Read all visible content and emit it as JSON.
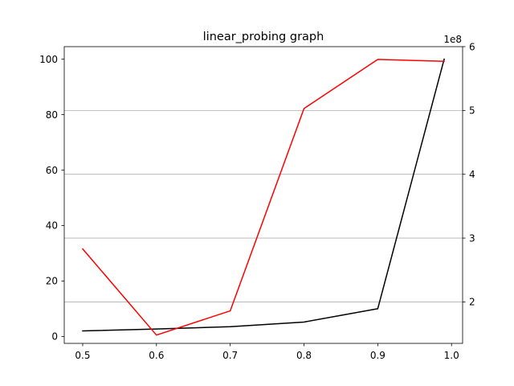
{
  "chart_data": {
    "type": "line",
    "title": "linear_probing graph",
    "xlabel": "",
    "ylabel_left": "",
    "ylabel_right": "",
    "x": [
      0.5,
      0.6,
      0.7,
      0.8,
      0.9,
      0.99
    ],
    "xlim": [
      0.475,
      1.015
    ],
    "x_ticks": [
      0.5,
      0.6,
      0.7,
      0.8,
      0.9,
      1.0
    ],
    "x_tick_labels": [
      "0.5",
      "0.6",
      "0.7",
      "0.8",
      "0.9",
      "1.0"
    ],
    "left_axis": {
      "ylim": [
        -2.5,
        104.5
      ],
      "ticks": [
        0,
        20,
        40,
        60,
        80,
        100
      ],
      "tick_labels": [
        "0",
        "20",
        "40",
        "60",
        "80",
        "100"
      ]
    },
    "right_axis": {
      "ylim": [
        1.35,
        6.0
      ],
      "ticks": [
        2,
        3,
        4,
        5,
        6
      ],
      "tick_labels": [
        "2",
        "3",
        "4",
        "5",
        "6"
      ],
      "offset_label": "1e8",
      "grid": true
    },
    "series": [
      {
        "axis": "left",
        "color": "#000000",
        "values": [
          2.0,
          2.7,
          3.5,
          5.2,
          10.0,
          100.0
        ]
      },
      {
        "axis": "right",
        "color": "#ff0000",
        "values": [
          2.83,
          1.48,
          1.86,
          5.03,
          5.8,
          5.77
        ]
      }
    ],
    "grid_color": "#b0b0b0",
    "legend": "none"
  }
}
